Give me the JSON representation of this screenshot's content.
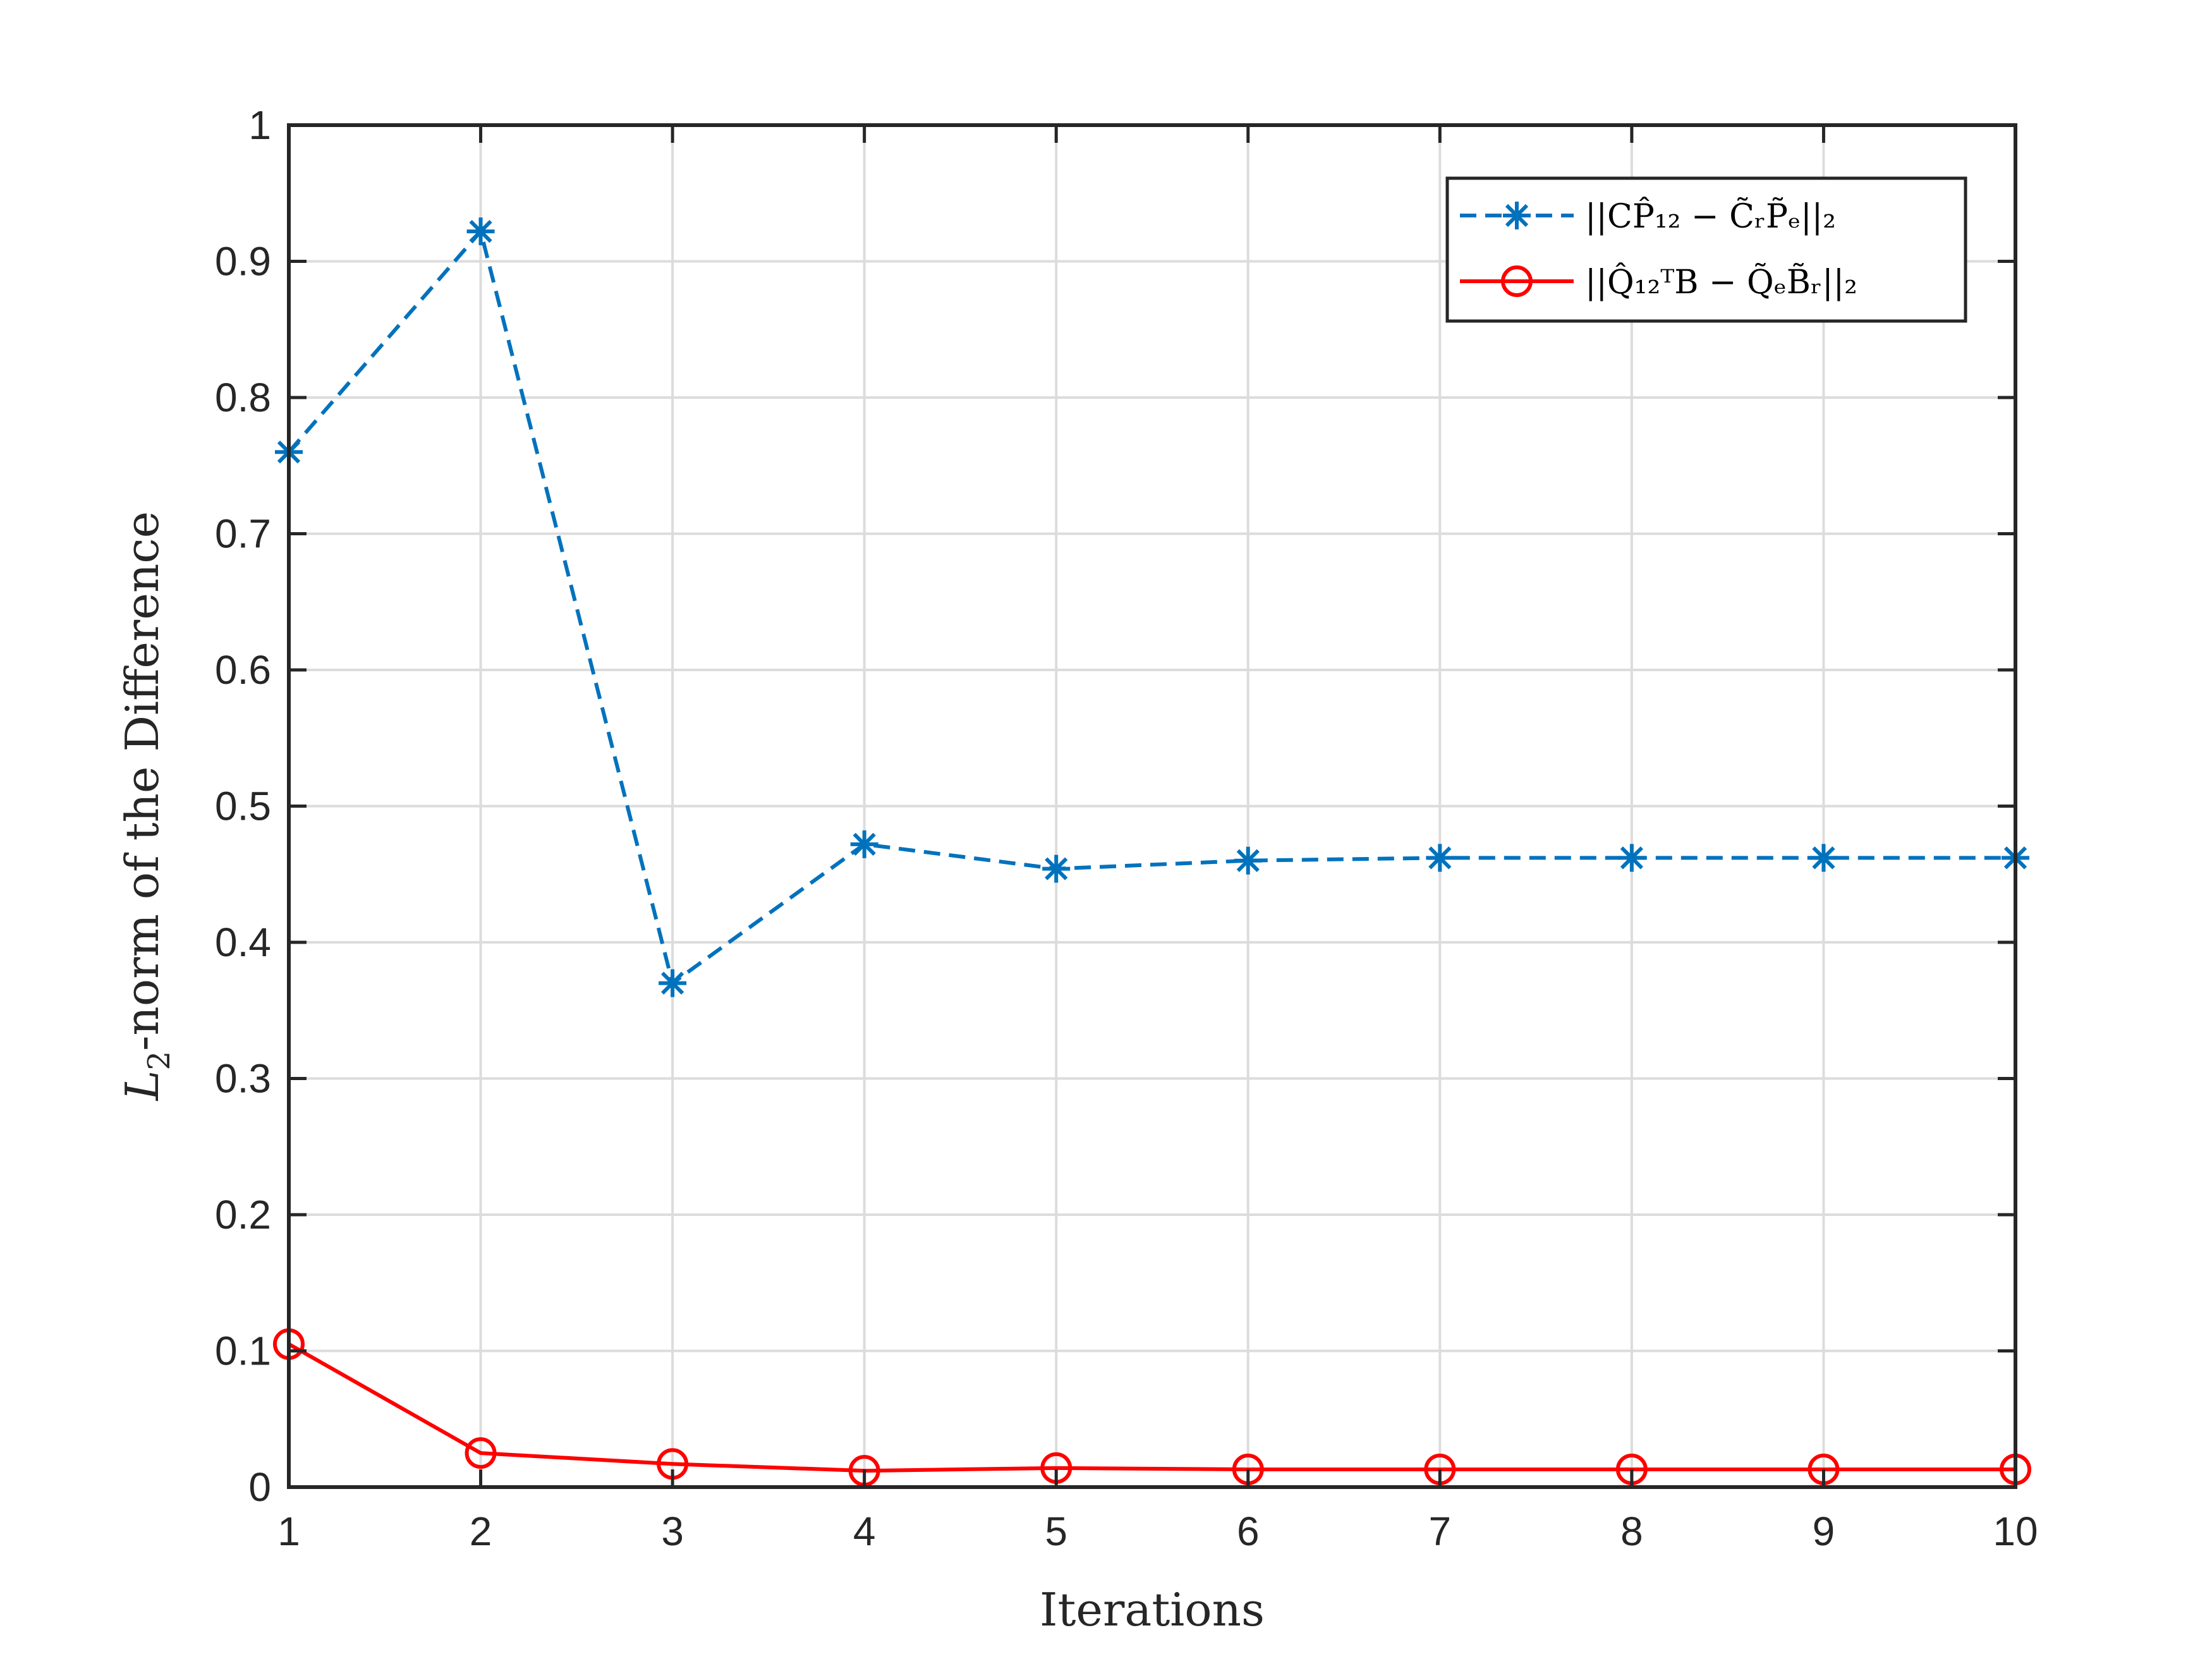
{
  "chart_data": {
    "type": "line",
    "x": [
      1,
      2,
      3,
      4,
      5,
      6,
      7,
      8,
      9,
      10
    ],
    "xlim": [
      1,
      10
    ],
    "ylim": [
      0,
      1
    ],
    "xticks": [
      "1",
      "2",
      "3",
      "4",
      "5",
      "6",
      "7",
      "8",
      "9",
      "10"
    ],
    "yticks": [
      "0",
      "0.1",
      "0.2",
      "0.3",
      "0.4",
      "0.5",
      "0.6",
      "0.7",
      "0.8",
      "0.9",
      "1"
    ],
    "xlabel": "Iterations",
    "ylabel_main": "L",
    "ylabel_sub": "2",
    "ylabel_rest": "-norm of the Difference",
    "grid": true,
    "legend_position": "top-right",
    "series": [
      {
        "name": "||CP̂₁₂ − C̃ᵣP̃ₑ||₂",
        "color": "#0072BD",
        "line": "dashed",
        "marker": "asterisk",
        "values": [
          0.76,
          0.922,
          0.37,
          0.472,
          0.454,
          0.46,
          0.462,
          0.462,
          0.462,
          0.462
        ]
      },
      {
        "name": "||Q̂₁₂ᵀB − Q̃ₑB̃ᵣ||₂",
        "color": "#FF0000",
        "line": "solid",
        "marker": "circle",
        "values": [
          0.105,
          0.025,
          0.017,
          0.012,
          0.014,
          0.013,
          0.013,
          0.013,
          0.013,
          0.013
        ]
      }
    ]
  }
}
